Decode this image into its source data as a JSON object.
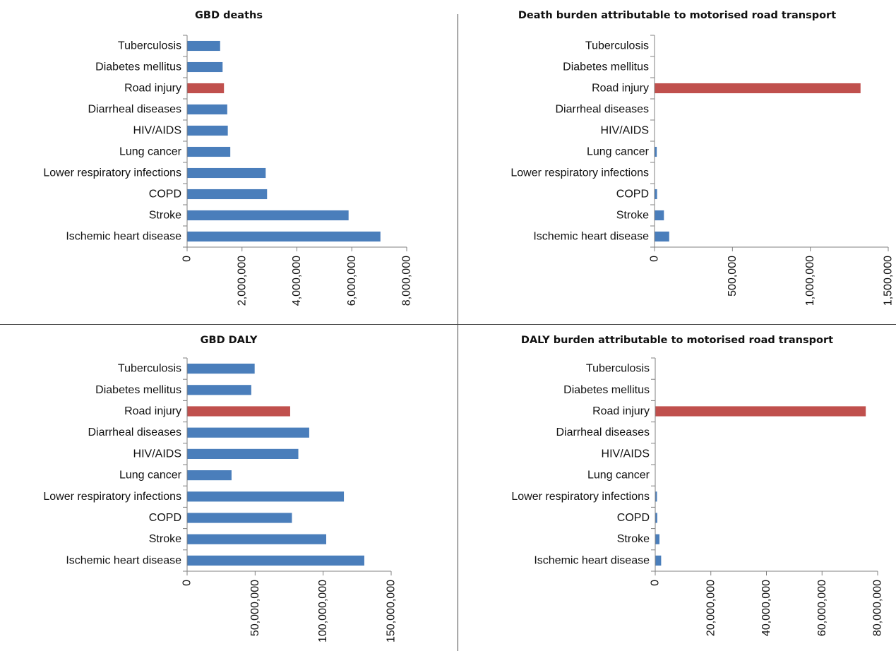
{
  "colors": {
    "bar": "#4a7ebb",
    "highlight": "#c0504d",
    "axis": "#808080",
    "text": "#111111",
    "divider": "#444444"
  },
  "chart_data": [
    {
      "type": "bar",
      "orientation": "horizontal",
      "title": "GBD deaths",
      "categories": [
        "Tuberculosis",
        "Diabetes mellitus",
        "Road injury",
        "Diarrheal diseases",
        "HIV/AIDS",
        "Lung cancer",
        "Lower respiratory infections",
        "COPD",
        "Stroke",
        "Ischemic heart disease"
      ],
      "values": [
        1190000,
        1280000,
        1330000,
        1450000,
        1470000,
        1560000,
        2850000,
        2900000,
        5870000,
        7030000
      ],
      "highlight_category": "Road injury",
      "xlim": [
        0,
        8000000
      ],
      "ticks": [
        0,
        2000000,
        4000000,
        6000000,
        8000000
      ],
      "tick_labels": [
        "0",
        "2,000,000",
        "4,000,000",
        "6,000,000",
        "8,000,000"
      ],
      "xlabel": "",
      "ylabel": "",
      "grid": false,
      "legend": "none"
    },
    {
      "type": "bar",
      "orientation": "horizontal",
      "title": "Death burden attributable to motorised road transport",
      "categories": [
        "Tuberculosis",
        "Diabetes mellitus",
        "Road injury",
        "Diarrheal diseases",
        "HIV/AIDS",
        "Lung cancer",
        "Lower respiratory infections",
        "COPD",
        "Stroke",
        "Ischemic heart disease"
      ],
      "values": [
        0,
        0,
        1320000,
        0,
        0,
        12000,
        0,
        14000,
        58000,
        92000
      ],
      "highlight_category": "Road injury",
      "xlim": [
        0,
        1500000
      ],
      "ticks": [
        0,
        500000,
        1000000,
        1500000
      ],
      "tick_labels": [
        "0",
        "500,000",
        "1,000,000",
        "1,500,000"
      ],
      "xlabel": "",
      "ylabel": "",
      "grid": false,
      "legend": "none"
    },
    {
      "type": "bar",
      "orientation": "horizontal",
      "title": "GBD DALY",
      "categories": [
        "Tuberculosis",
        "Diabetes mellitus",
        "Road injury",
        "Diarrheal diseases",
        "HIV/AIDS",
        "Lung cancer",
        "Lower respiratory infections",
        "COPD",
        "Stroke",
        "Ischemic heart disease"
      ],
      "values": [
        49400000,
        46900000,
        75500000,
        89500000,
        81500000,
        32400000,
        115000000,
        76800000,
        102000000,
        130000000
      ],
      "highlight_category": "Road injury",
      "xlim": [
        0,
        150000000
      ],
      "ticks": [
        0,
        50000000,
        100000000,
        150000000
      ],
      "tick_labels": [
        "0",
        "50,000,000",
        "100,000,000",
        "150,000,000"
      ],
      "xlabel": "",
      "ylabel": "",
      "grid": false,
      "legend": "none"
    },
    {
      "type": "bar",
      "orientation": "horizontal",
      "title": "DALY burden attributable to motorised road transport",
      "categories": [
        "Tuberculosis",
        "Diabetes mellitus",
        "Road injury",
        "Diarrheal diseases",
        "HIV/AIDS",
        "Lung cancer",
        "Lower respiratory infections",
        "COPD",
        "Stroke",
        "Ischemic heart disease"
      ],
      "values": [
        0,
        0,
        75600000,
        0,
        0,
        0,
        500000,
        600000,
        1400000,
        2000000
      ],
      "highlight_category": "Road injury",
      "xlim": [
        0,
        80000000
      ],
      "ticks": [
        0,
        20000000,
        40000000,
        60000000,
        80000000
      ],
      "tick_labels": [
        "0",
        "20,000,000",
        "40,000,000",
        "60,000,000",
        "80,000,000"
      ],
      "xlabel": "",
      "ylabel": "",
      "grid": false,
      "legend": "none"
    }
  ]
}
